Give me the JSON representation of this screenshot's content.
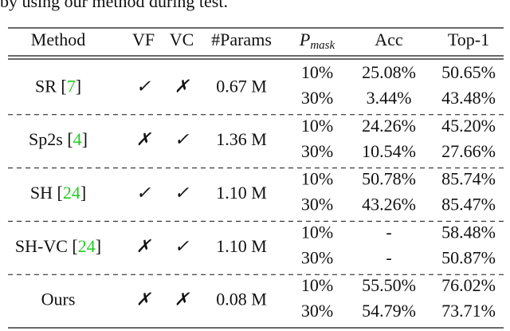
{
  "caption_fragment": "by using our method during test.",
  "table": {
    "header": {
      "method": "Method",
      "vf": "VF",
      "vc": "VC",
      "params": "#Params",
      "pmask": {
        "symbol": "P",
        "subscript": "mask"
      },
      "acc": "Acc",
      "top1": "Top-1"
    },
    "groups": [
      {
        "method": [
          "SR [",
          "7",
          "]"
        ],
        "vf": "✓",
        "vc": "✗",
        "params": "0.67 M",
        "rows": [
          [
            "10%",
            "25.08%",
            "50.65%"
          ],
          [
            "30%",
            "3.44%",
            "43.48%"
          ]
        ]
      },
      {
        "method": [
          "Sp2s [",
          "4",
          "]"
        ],
        "vf": "✗",
        "vc": "✓",
        "params": "1.36 M",
        "rows": [
          [
            "10%",
            "24.26%",
            "45.20%"
          ],
          [
            "30%",
            "10.54%",
            "27.66%"
          ]
        ]
      },
      {
        "method": [
          "SH [",
          "24",
          "]"
        ],
        "vf": "✓",
        "vc": "✓",
        "params": "1.10 M",
        "rows": [
          [
            "10%",
            "50.78%",
            "85.74%"
          ],
          [
            "30%",
            "43.26%",
            "85.47%"
          ]
        ]
      },
      {
        "method": [
          "SH-VC [",
          "24",
          "]"
        ],
        "vf": "✗",
        "vc": "✓",
        "params": "1.10 M",
        "rows": [
          [
            "10%",
            "-",
            "58.48%"
          ],
          [
            "30%",
            "-",
            "50.87%"
          ]
        ]
      },
      {
        "method": [
          "Ours"
        ],
        "vf": "✗",
        "vc": "✗",
        "params": "0.08 M",
        "rows": [
          [
            "10%",
            "55.50%",
            "76.02%"
          ],
          [
            "30%",
            "54.79%",
            "73.71%"
          ]
        ]
      }
    ]
  }
}
